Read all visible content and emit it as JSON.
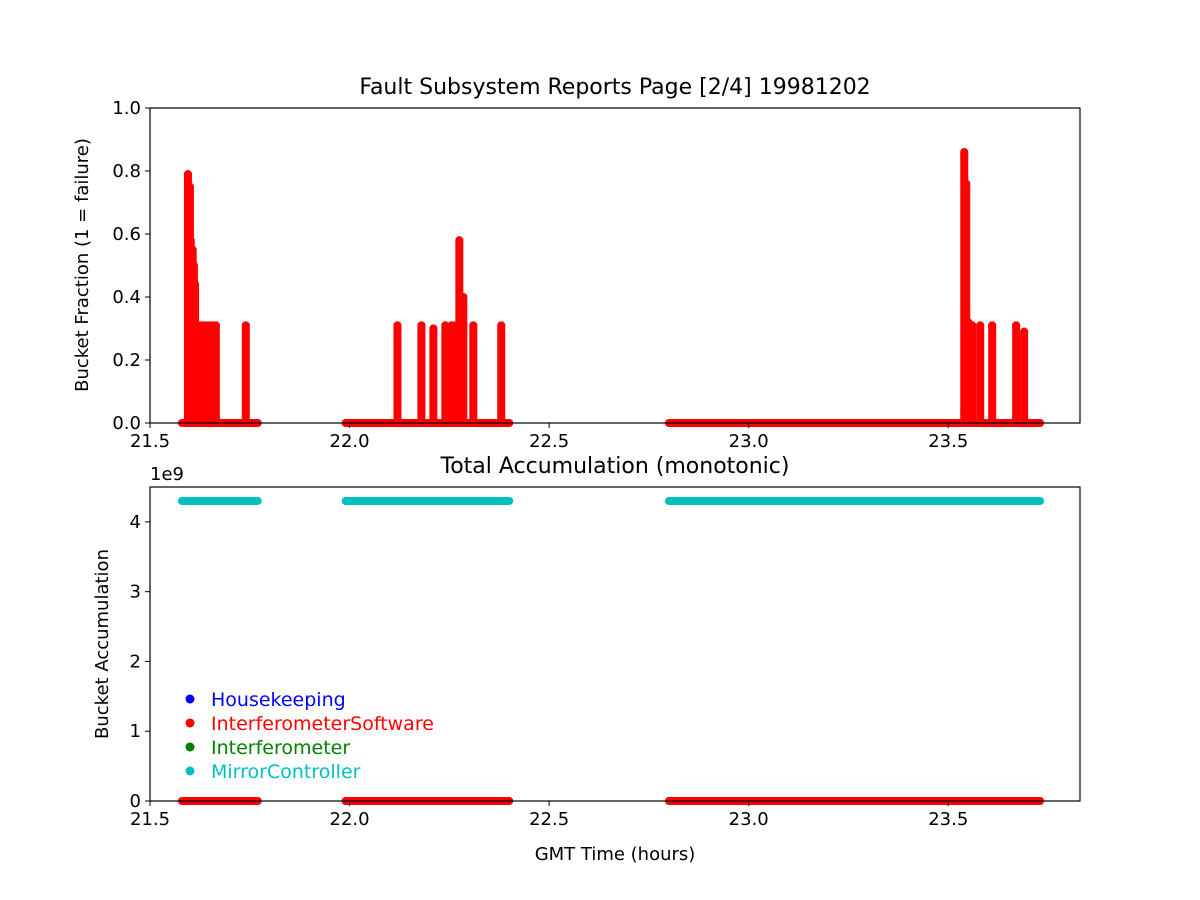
{
  "chart_data": [
    {
      "type": "scatter",
      "title": "Fault Subsystem Reports Page [2/4] 19981202",
      "xlabel": "",
      "ylabel": "Bucket Fraction (1 = failure)",
      "xlim": [
        21.5,
        23.83
      ],
      "ylim": [
        0,
        1.0
      ],
      "xticks": [
        21.5,
        22.0,
        22.5,
        23.0,
        23.5
      ],
      "xtick_labels": [
        "21.5",
        "22.0",
        "22.5",
        "23.0",
        "23.5"
      ],
      "yticks": [
        0,
        0.2,
        0.4,
        0.6,
        0.8,
        1.0
      ],
      "ytick_labels": [
        "0.0",
        "0.2",
        "0.4",
        "0.6",
        "0.8",
        "1.0"
      ],
      "grid": false,
      "series": [
        {
          "name": "Housekeeping",
          "color": "#0000ff",
          "x": [
            21.6,
            23.54
          ],
          "y": [
            0.02,
            0.03
          ]
        },
        {
          "name": "InterferometerSoftware",
          "color": "#ff0000",
          "baseline": [
            [
              21.58,
              21.77
            ],
            [
              21.99,
              22.4
            ],
            [
              22.8,
              23.73
            ]
          ],
          "spikes": [
            {
              "x": 21.595,
              "y": 0.79
            },
            {
              "x": 21.6,
              "y": 0.75
            },
            {
              "x": 21.602,
              "y": 0.58
            },
            {
              "x": 21.607,
              "y": 0.55
            },
            {
              "x": 21.61,
              "y": 0.5
            },
            {
              "x": 21.613,
              "y": 0.44
            },
            {
              "x": 21.617,
              "y": 0.31
            },
            {
              "x": 21.622,
              "y": 0.31
            },
            {
              "x": 21.628,
              "y": 0.31
            },
            {
              "x": 21.635,
              "y": 0.31
            },
            {
              "x": 21.642,
              "y": 0.31
            },
            {
              "x": 21.65,
              "y": 0.31
            },
            {
              "x": 21.658,
              "y": 0.31
            },
            {
              "x": 21.665,
              "y": 0.31
            },
            {
              "x": 21.74,
              "y": 0.31
            },
            {
              "x": 22.12,
              "y": 0.31
            },
            {
              "x": 22.18,
              "y": 0.31
            },
            {
              "x": 22.21,
              "y": 0.3
            },
            {
              "x": 22.24,
              "y": 0.31
            },
            {
              "x": 22.255,
              "y": 0.31
            },
            {
              "x": 22.265,
              "y": 0.31
            },
            {
              "x": 22.275,
              "y": 0.58
            },
            {
              "x": 22.285,
              "y": 0.4
            },
            {
              "x": 22.31,
              "y": 0.31
            },
            {
              "x": 22.38,
              "y": 0.31
            },
            {
              "x": 23.54,
              "y": 0.86
            },
            {
              "x": 23.545,
              "y": 0.76
            },
            {
              "x": 23.55,
              "y": 0.32
            },
            {
              "x": 23.56,
              "y": 0.31
            },
            {
              "x": 23.58,
              "y": 0.31
            },
            {
              "x": 23.61,
              "y": 0.31
            },
            {
              "x": 23.67,
              "y": 0.31
            },
            {
              "x": 23.69,
              "y": 0.29
            }
          ]
        },
        {
          "name": "Interferometer",
          "color": "#008000",
          "x": [],
          "y": []
        },
        {
          "name": "MirrorController",
          "color": "#00bfbf",
          "x": [],
          "y": []
        }
      ]
    },
    {
      "type": "scatter",
      "title": "Total Accumulation (monotonic)",
      "xlabel": "GMT Time (hours)",
      "ylabel": "Bucket Accumulation",
      "y_offset_label": "1e9",
      "xlim": [
        21.5,
        23.83
      ],
      "ylim": [
        0,
        4.5
      ],
      "xticks": [
        21.5,
        22.0,
        22.5,
        23.0,
        23.5
      ],
      "xtick_labels": [
        "21.5",
        "22.0",
        "22.5",
        "23.0",
        "23.5"
      ],
      "yticks": [
        0,
        1,
        2,
        3,
        4
      ],
      "ytick_labels": [
        "0",
        "1",
        "2",
        "3",
        "4"
      ],
      "grid": false,
      "legend_position": "lower-left",
      "series": [
        {
          "name": "Housekeeping",
          "color": "#0000ff",
          "segments": [],
          "value": 0
        },
        {
          "name": "InterferometerSoftware",
          "color": "#ff0000",
          "segments": [
            [
              21.58,
              21.77
            ],
            [
              21.99,
              22.4
            ],
            [
              22.8,
              23.73
            ]
          ],
          "value": 0
        },
        {
          "name": "Interferometer",
          "color": "#008000",
          "segments": [],
          "value": 0
        },
        {
          "name": "MirrorController",
          "color": "#00bfbf",
          "segments": [
            [
              21.58,
              21.77
            ],
            [
              21.99,
              22.4
            ],
            [
              22.8,
              23.73
            ]
          ],
          "value": 4.3
        }
      ]
    }
  ]
}
